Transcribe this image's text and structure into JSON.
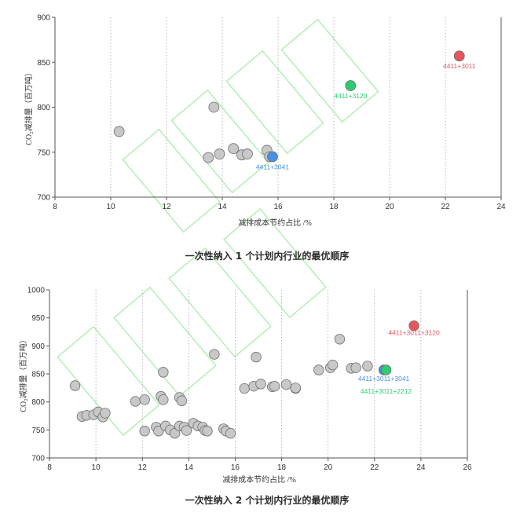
{
  "chart_data": [
    {
      "type": "scatter",
      "xlabel": "减排成本节约占比 /%",
      "ylabel": "CO₂减排量（百万吨）",
      "xlim": [
        8,
        24
      ],
      "ylim": [
        700,
        900
      ],
      "xticks": [
        8,
        10,
        12,
        14,
        16,
        18,
        20,
        22,
        24
      ],
      "yticks": [
        700,
        750,
        800,
        850,
        900
      ],
      "grid": "vertical-dotted",
      "caption": "一次性纳入 1 个计划内行业的最优顺序",
      "points": [
        {
          "x": 10.3,
          "y": 773
        },
        {
          "x": 13.7,
          "y": 800
        },
        {
          "x": 13.5,
          "y": 744
        },
        {
          "x": 13.9,
          "y": 748
        },
        {
          "x": 14.4,
          "y": 754
        },
        {
          "x": 14.7,
          "y": 747
        },
        {
          "x": 14.9,
          "y": 748
        },
        {
          "x": 15.6,
          "y": 752
        },
        {
          "x": 15.7,
          "y": 745
        }
      ],
      "highlights": [
        {
          "x": 15.8,
          "y": 745,
          "label": "4411+3041",
          "color": "#4a90e2"
        },
        {
          "x": 18.6,
          "y": 824,
          "label": "4411+3120",
          "color": "#2ecc71"
        },
        {
          "x": 22.5,
          "y": 857,
          "label": "4411+3011",
          "color": "#e8565c"
        }
      ]
    },
    {
      "type": "scatter",
      "xlabel": "减排成本节约占比 /%",
      "ylabel": "CO₂减排量（百万吨）",
      "xlim": [
        8,
        26
      ],
      "ylim": [
        700,
        1000
      ],
      "xticks": [
        8,
        10,
        12,
        14,
        16,
        18,
        20,
        22,
        24,
        26
      ],
      "yticks": [
        700,
        750,
        800,
        850,
        900,
        950,
        1000
      ],
      "grid": "vertical-dotted",
      "caption": "一次性纳入 2 个计划内行业的最优顺序",
      "points": [
        {
          "x": 9.1,
          "y": 829
        },
        {
          "x": 9.4,
          "y": 774
        },
        {
          "x": 9.6,
          "y": 776
        },
        {
          "x": 9.9,
          "y": 777
        },
        {
          "x": 10.1,
          "y": 782
        },
        {
          "x": 10.3,
          "y": 773
        },
        {
          "x": 10.4,
          "y": 780
        },
        {
          "x": 11.7,
          "y": 801
        },
        {
          "x": 12.1,
          "y": 804
        },
        {
          "x": 12.1,
          "y": 748
        },
        {
          "x": 12.6,
          "y": 755
        },
        {
          "x": 12.7,
          "y": 748
        },
        {
          "x": 12.8,
          "y": 810
        },
        {
          "x": 12.9,
          "y": 804
        },
        {
          "x": 12.9,
          "y": 853
        },
        {
          "x": 13.0,
          "y": 757
        },
        {
          "x": 13.2,
          "y": 750
        },
        {
          "x": 13.4,
          "y": 744
        },
        {
          "x": 13.6,
          "y": 757
        },
        {
          "x": 13.6,
          "y": 808
        },
        {
          "x": 13.7,
          "y": 802
        },
        {
          "x": 13.8,
          "y": 755
        },
        {
          "x": 13.9,
          "y": 749
        },
        {
          "x": 14.2,
          "y": 762
        },
        {
          "x": 14.4,
          "y": 757
        },
        {
          "x": 14.6,
          "y": 755
        },
        {
          "x": 14.7,
          "y": 749
        },
        {
          "x": 14.8,
          "y": 748
        },
        {
          "x": 15.1,
          "y": 885
        },
        {
          "x": 15.5,
          "y": 752
        },
        {
          "x": 15.6,
          "y": 748
        },
        {
          "x": 15.8,
          "y": 744
        },
        {
          "x": 16.4,
          "y": 824
        },
        {
          "x": 16.8,
          "y": 828
        },
        {
          "x": 16.9,
          "y": 880
        },
        {
          "x": 17.1,
          "y": 832
        },
        {
          "x": 17.6,
          "y": 827
        },
        {
          "x": 17.7,
          "y": 828
        },
        {
          "x": 18.2,
          "y": 831
        },
        {
          "x": 18.6,
          "y": 824
        },
        {
          "x": 18.6,
          "y": 825
        },
        {
          "x": 19.6,
          "y": 857
        },
        {
          "x": 20.1,
          "y": 861
        },
        {
          "x": 20.2,
          "y": 866
        },
        {
          "x": 20.5,
          "y": 912
        },
        {
          "x": 21.0,
          "y": 860
        },
        {
          "x": 21.2,
          "y": 861
        },
        {
          "x": 21.7,
          "y": 864
        }
      ],
      "highlights": [
        {
          "x": 22.4,
          "y": 857,
          "label": "4411+3011+3041",
          "color": "#4a90e2"
        },
        {
          "x": 22.5,
          "y": 857,
          "label": "4411+3011+2212",
          "color": "#2ecc71"
        },
        {
          "x": 23.7,
          "y": 936,
          "label": "4411+3011+3120",
          "color": "#e8565c"
        }
      ]
    }
  ]
}
